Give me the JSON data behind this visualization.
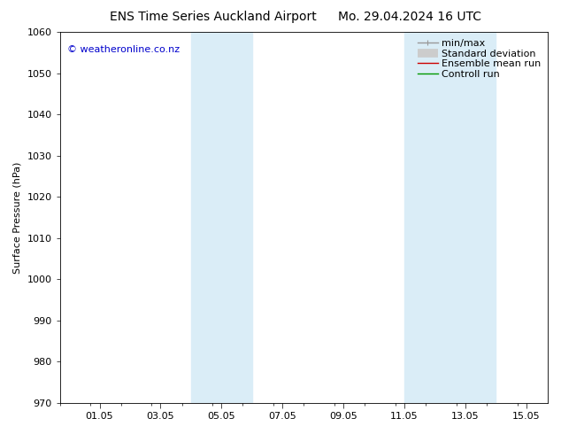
{
  "title_left": "ENS Time Series Auckland Airport",
  "title_right": "Mo. 29.04.2024 16 UTC",
  "ylabel": "Surface Pressure (hPa)",
  "ylim": [
    970,
    1060
  ],
  "yticks": [
    970,
    980,
    990,
    1000,
    1010,
    1020,
    1030,
    1040,
    1050,
    1060
  ],
  "xtick_labels": [
    "01.05",
    "03.05",
    "05.05",
    "07.05",
    "09.05",
    "11.05",
    "13.05",
    "15.05"
  ],
  "xtick_positions": [
    1,
    3,
    5,
    7,
    9,
    11,
    13,
    15
  ],
  "shaded_regions": [
    {
      "xstart": 4.0,
      "xend": 6.0,
      "color": "#daedf7"
    },
    {
      "xstart": 11.0,
      "xend": 14.0,
      "color": "#daedf7"
    }
  ],
  "watermark": "© weatheronline.co.nz",
  "legend_entries": [
    {
      "label": "min/max",
      "color": "#999999",
      "lw": 1.0,
      "style": "solid",
      "type": "minmax"
    },
    {
      "label": "Standard deviation",
      "color": "#cccccc",
      "lw": 7,
      "style": "solid",
      "type": "band"
    },
    {
      "label": "Ensemble mean run",
      "color": "#cc0000",
      "lw": 1.0,
      "style": "solid",
      "type": "line"
    },
    {
      "label": "Controll run",
      "color": "#009900",
      "lw": 1.0,
      "style": "solid",
      "type": "line"
    }
  ],
  "bg_color": "#ffffff",
  "plot_bg_color": "#ffffff",
  "title_fontsize": 10,
  "tick_fontsize": 8,
  "ylabel_fontsize": 8,
  "watermark_color": "#0000cc",
  "watermark_fontsize": 8,
  "legend_fontsize": 8,
  "xlim": [
    -0.3,
    15.7
  ]
}
